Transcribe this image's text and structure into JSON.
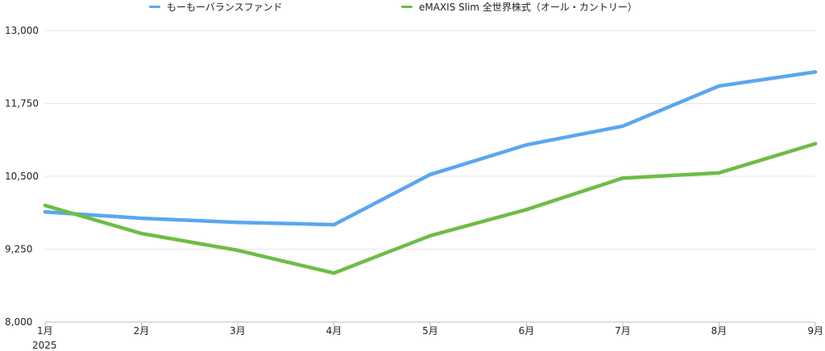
{
  "chart_data": {
    "type": "line",
    "categories": [
      "1月",
      "2月",
      "3月",
      "4月",
      "5月",
      "6月",
      "7月",
      "8月",
      "9月"
    ],
    "x_sublabel": "2025",
    "ylim": [
      8000,
      13000
    ],
    "yticks": [
      8000,
      9250,
      10500,
      11750,
      13000
    ],
    "ytick_labels": [
      "8,000",
      "9,250",
      "10,500",
      "11,750",
      "13,000"
    ],
    "grid": true,
    "legend_position": "top",
    "series": [
      {
        "name": "もーもーバランスファンド",
        "color": "#5aa6f0",
        "values": [
          9890,
          9780,
          9710,
          9670,
          10530,
          11040,
          11360,
          12050,
          12290
        ]
      },
      {
        "name": "eMAXIS Slim 全世界株式（オール・カントリー）",
        "color": "#6dbd45",
        "values": [
          10000,
          9520,
          9230,
          8840,
          9480,
          9930,
          10470,
          10560,
          11060
        ]
      }
    ]
  }
}
